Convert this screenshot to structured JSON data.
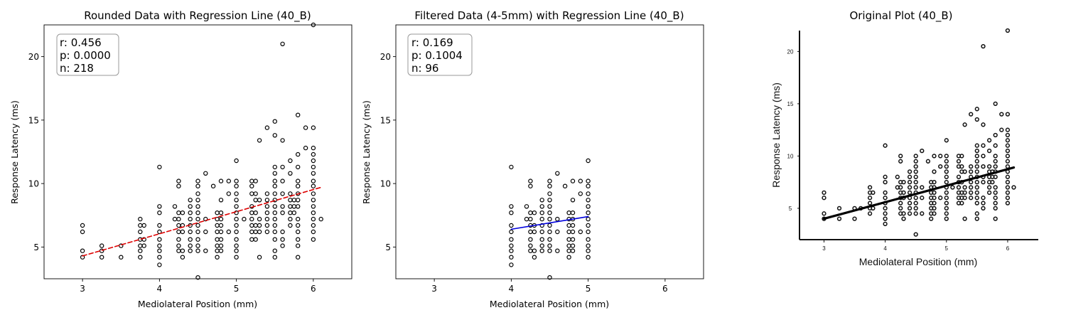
{
  "chart_data": [
    {
      "type": "scatter",
      "title": "Rounded Data with Regression Line (40_B)",
      "xlabel": "Mediolateral Position (mm)",
      "ylabel": "Response Latency (ms)",
      "xlim": [
        2.5,
        6.5
      ],
      "ylim": [
        2.5,
        22.5
      ],
      "xticks": [
        "3",
        "4",
        "5",
        "6"
      ],
      "yticks": [
        "5",
        "10",
        "15",
        "20"
      ],
      "stats": {
        "r": "r: 0.456",
        "p": "p: 0.0000",
        "n": "n: 218"
      },
      "regression": {
        "x": [
          3.0,
          6.1
        ],
        "y": [
          4.3,
          9.7
        ],
        "color": "#dd0000",
        "style": "dashed"
      },
      "marker_color": "#000000",
      "columns": [
        {
          "x": 3.0,
          "y": [
            4.2,
            4.7,
            6.2,
            6.7
          ]
        },
        {
          "x": 3.25,
          "y": [
            4.2,
            4.7,
            5.1
          ]
        },
        {
          "x": 3.5,
          "y": [
            4.2,
            5.1
          ]
        },
        {
          "x": 3.75,
          "y": [
            4.2,
            4.7,
            5.1,
            5.6,
            6.2,
            6.7,
            7.2
          ]
        },
        {
          "x": 3.8,
          "y": [
            5.1,
            5.6,
            6.7
          ]
        },
        {
          "x": 4.0,
          "y": [
            3.6,
            4.2,
            4.7,
            5.1,
            5.6,
            6.2,
            6.7,
            7.7,
            8.2,
            11.3
          ]
        },
        {
          "x": 4.2,
          "y": [
            7.2,
            8.2
          ]
        },
        {
          "x": 4.25,
          "y": [
            4.7,
            5.1,
            5.6,
            6.2,
            6.7,
            7.2,
            7.7,
            9.8,
            10.2
          ]
        },
        {
          "x": 4.3,
          "y": [
            4.2,
            4.7,
            6.2,
            6.7,
            7.7
          ]
        },
        {
          "x": 4.4,
          "y": [
            4.7,
            5.1,
            5.6,
            6.2,
            6.7,
            7.2,
            7.7,
            8.2,
            8.7
          ]
        },
        {
          "x": 4.5,
          "y": [
            2.6,
            4.7,
            5.1,
            5.6,
            6.2,
            6.7,
            7.2,
            7.7,
            8.2,
            8.7,
            9.2,
            9.8,
            10.2
          ]
        },
        {
          "x": 4.6,
          "y": [
            4.7,
            6.2,
            7.2,
            10.8
          ]
        },
        {
          "x": 4.7,
          "y": [
            9.8
          ]
        },
        {
          "x": 4.75,
          "y": [
            4.2,
            4.7,
            5.1,
            5.6,
            6.2,
            6.7,
            7.2,
            7.7
          ]
        },
        {
          "x": 4.8,
          "y": [
            4.7,
            5.1,
            5.6,
            6.2,
            6.7,
            7.2,
            7.7,
            8.7,
            10.2
          ]
        },
        {
          "x": 4.9,
          "y": [
            6.2,
            9.2,
            10.2
          ]
        },
        {
          "x": 5.0,
          "y": [
            4.2,
            4.7,
            5.1,
            5.6,
            6.2,
            6.7,
            7.2,
            7.7,
            8.2,
            8.7,
            9.2,
            9.8,
            10.2,
            11.8
          ]
        },
        {
          "x": 5.1,
          "y": [
            7.2
          ]
        },
        {
          "x": 5.2,
          "y": [
            5.6,
            6.2,
            6.7,
            7.2,
            7.7,
            8.2,
            9.2,
            9.8,
            10.2
          ]
        },
        {
          "x": 5.25,
          "y": [
            5.6,
            6.2,
            6.7,
            7.7,
            8.7,
            9.2,
            10.2
          ]
        },
        {
          "x": 5.3,
          "y": [
            4.2,
            6.2,
            6.7,
            7.2,
            8.7,
            13.4
          ]
        },
        {
          "x": 5.4,
          "y": [
            6.2,
            6.7,
            7.2,
            7.7,
            8.2,
            8.7,
            9.2,
            14.4
          ]
        },
        {
          "x": 5.5,
          "y": [
            4.2,
            4.7,
            5.6,
            6.2,
            6.7,
            7.2,
            7.7,
            8.2,
            8.7,
            9.2,
            9.8,
            10.2,
            10.8,
            11.3,
            13.8,
            14.9
          ]
        },
        {
          "x": 5.6,
          "y": [
            5.1,
            5.6,
            6.2,
            7.7,
            8.2,
            9.2,
            10.2,
            11.3,
            13.4,
            21.0
          ]
        },
        {
          "x": 5.7,
          "y": [
            6.7,
            7.2,
            7.7,
            8.2,
            8.7,
            9.2,
            10.8,
            11.8
          ]
        },
        {
          "x": 5.75,
          "y": [
            7.7,
            8.2,
            8.7
          ]
        },
        {
          "x": 5.8,
          "y": [
            4.2,
            5.1,
            5.6,
            6.2,
            6.7,
            7.2,
            8.2,
            8.7,
            9.2,
            9.8,
            10.2,
            11.3,
            12.3,
            15.4
          ]
        },
        {
          "x": 5.9,
          "y": [
            12.8,
            14.4
          ]
        },
        {
          "x": 6.0,
          "y": [
            5.6,
            6.2,
            6.7,
            7.2,
            7.7,
            8.2,
            8.7,
            9.2,
            9.8,
            10.2,
            10.8,
            11.3,
            11.8,
            12.3,
            12.8,
            14.4,
            22.5
          ]
        },
        {
          "x": 6.1,
          "y": [
            7.2
          ]
        }
      ]
    },
    {
      "type": "scatter",
      "title": "Filtered Data (4-5mm) with Regression Line (40_B)",
      "xlabel": "Mediolateral Position (mm)",
      "ylabel": "Response Latency (ms)",
      "xlim": [
        2.5,
        6.5
      ],
      "ylim": [
        2.5,
        22.5
      ],
      "xticks": [
        "3",
        "4",
        "5",
        "6"
      ],
      "yticks": [
        "5",
        "10",
        "15",
        "20"
      ],
      "stats": {
        "r": "r: 0.169",
        "p": "p: 0.1004",
        "n": "n: 96"
      },
      "regression": {
        "x": [
          4.0,
          5.0
        ],
        "y": [
          6.4,
          7.4
        ],
        "color": "#0000dd",
        "style": "solid"
      },
      "marker_color": "#000000",
      "columns": [
        {
          "x": 4.0,
          "y": [
            3.6,
            4.2,
            4.7,
            5.1,
            5.6,
            6.2,
            6.7,
            7.7,
            8.2,
            11.3
          ]
        },
        {
          "x": 4.2,
          "y": [
            7.2,
            8.2
          ]
        },
        {
          "x": 4.25,
          "y": [
            4.7,
            5.1,
            5.6,
            6.2,
            6.7,
            7.2,
            7.7,
            9.8,
            10.2
          ]
        },
        {
          "x": 4.3,
          "y": [
            4.2,
            4.7,
            6.2,
            6.7,
            7.7
          ]
        },
        {
          "x": 4.4,
          "y": [
            4.7,
            5.1,
            5.6,
            6.2,
            6.7,
            7.2,
            7.7,
            8.2,
            8.7
          ]
        },
        {
          "x": 4.5,
          "y": [
            2.6,
            4.7,
            5.1,
            5.6,
            6.2,
            6.7,
            7.2,
            7.7,
            8.2,
            8.7,
            9.2,
            9.8,
            10.2
          ]
        },
        {
          "x": 4.6,
          "y": [
            4.7,
            6.2,
            7.2,
            10.8
          ]
        },
        {
          "x": 4.7,
          "y": [
            9.8
          ]
        },
        {
          "x": 4.75,
          "y": [
            4.2,
            4.7,
            5.1,
            5.6,
            6.2,
            6.7,
            7.2,
            7.7
          ]
        },
        {
          "x": 4.8,
          "y": [
            4.7,
            5.1,
            5.6,
            6.2,
            6.7,
            7.2,
            7.7,
            8.7,
            10.2
          ]
        },
        {
          "x": 4.9,
          "y": [
            6.2,
            9.2,
            10.2
          ]
        },
        {
          "x": 5.0,
          "y": [
            4.2,
            4.7,
            5.1,
            5.6,
            6.2,
            6.7,
            7.2,
            7.7,
            8.2,
            8.7,
            9.2,
            9.8,
            10.2,
            11.8
          ]
        }
      ]
    },
    {
      "type": "scatter",
      "title": "Original Plot (40_B)",
      "xlabel": "Mediolateral Position (mm)",
      "ylabel": "Response Latency (ms)",
      "xlim": [
        2.6,
        6.5
      ],
      "ylim": [
        2.0,
        22.0
      ],
      "xticks": [
        "3",
        "4",
        "5",
        "6"
      ],
      "yticks": [
        "5",
        "10",
        "15",
        "20"
      ],
      "regression": {
        "x": [
          3.0,
          6.1
        ],
        "y": [
          4.0,
          8.9
        ],
        "color": "#000000",
        "style": "solid"
      },
      "marker_color": "#111111",
      "columns": [
        {
          "x": 3.0,
          "y": [
            4.0,
            4.5,
            6.0,
            6.5
          ]
        },
        {
          "x": 3.25,
          "y": [
            4.0,
            5.0
          ]
        },
        {
          "x": 3.5,
          "y": [
            4.0,
            5.0
          ]
        },
        {
          "x": 3.6,
          "y": [
            5.0
          ]
        },
        {
          "x": 3.75,
          "y": [
            4.5,
            5.0,
            5.5,
            6.0,
            6.5,
            7.0
          ]
        },
        {
          "x": 3.8,
          "y": [
            5.0,
            6.5
          ]
        },
        {
          "x": 4.0,
          "y": [
            3.5,
            4.0,
            4.5,
            5.0,
            5.5,
            6.0,
            6.5,
            7.5,
            8.0,
            11.0
          ]
        },
        {
          "x": 4.2,
          "y": [
            7.0,
            8.0
          ]
        },
        {
          "x": 4.25,
          "y": [
            4.5,
            5.0,
            5.5,
            6.0,
            6.5,
            7.0,
            7.5,
            9.5,
            10.0
          ]
        },
        {
          "x": 4.3,
          "y": [
            4.0,
            4.5,
            6.0,
            6.5,
            7.5
          ]
        },
        {
          "x": 4.4,
          "y": [
            4.5,
            5.0,
            5.5,
            6.0,
            6.5,
            7.0,
            7.5,
            8.0,
            8.5
          ]
        },
        {
          "x": 4.5,
          "y": [
            2.5,
            4.5,
            5.0,
            5.5,
            6.0,
            6.5,
            7.0,
            7.5,
            8.0,
            8.5,
            9.0,
            9.5,
            10.0
          ]
        },
        {
          "x": 4.6,
          "y": [
            4.5,
            6.0,
            7.0,
            10.5
          ]
        },
        {
          "x": 4.7,
          "y": [
            9.5
          ]
        },
        {
          "x": 4.75,
          "y": [
            4.0,
            4.5,
            5.0,
            5.5,
            6.0,
            6.5,
            7.0,
            7.5
          ]
        },
        {
          "x": 4.8,
          "y": [
            4.5,
            5.0,
            5.5,
            6.0,
            6.5,
            7.0,
            7.5,
            8.5,
            10.0
          ]
        },
        {
          "x": 4.9,
          "y": [
            6.0,
            9.0,
            10.0
          ]
        },
        {
          "x": 5.0,
          "y": [
            4.0,
            4.5,
            5.0,
            5.5,
            6.0,
            6.5,
            7.0,
            7.5,
            8.0,
            8.5,
            9.0,
            9.5,
            10.0,
            11.5
          ]
        },
        {
          "x": 5.1,
          "y": [
            7.0
          ]
        },
        {
          "x": 5.2,
          "y": [
            5.5,
            6.0,
            6.5,
            7.0,
            7.5,
            8.0,
            9.0,
            9.5,
            10.0
          ]
        },
        {
          "x": 5.25,
          "y": [
            5.5,
            6.0,
            6.5,
            7.5,
            8.5,
            9.0,
            10.0
          ]
        },
        {
          "x": 5.3,
          "y": [
            4.0,
            6.0,
            6.5,
            7.0,
            8.5,
            13.0
          ]
        },
        {
          "x": 5.4,
          "y": [
            6.0,
            6.5,
            7.0,
            7.5,
            8.0,
            8.5,
            9.0,
            14.0
          ]
        },
        {
          "x": 5.5,
          "y": [
            4.0,
            4.5,
            5.5,
            6.0,
            6.5,
            7.0,
            7.5,
            8.0,
            8.5,
            9.0,
            9.5,
            10.0,
            10.5,
            11.0,
            13.5,
            14.5
          ]
        },
        {
          "x": 5.6,
          "y": [
            5.0,
            5.5,
            6.0,
            7.5,
            8.0,
            9.0,
            10.0,
            11.0,
            13.0,
            20.5
          ]
        },
        {
          "x": 5.7,
          "y": [
            6.5,
            7.0,
            7.5,
            8.0,
            8.5,
            9.0,
            10.5,
            11.5
          ]
        },
        {
          "x": 5.75,
          "y": [
            7.5,
            8.0,
            8.5
          ]
        },
        {
          "x": 5.8,
          "y": [
            4.0,
            5.0,
            5.5,
            6.0,
            6.5,
            7.0,
            8.0,
            8.5,
            9.0,
            9.5,
            10.0,
            11.0,
            12.0,
            15.0
          ]
        },
        {
          "x": 5.9,
          "y": [
            12.5,
            14.0
          ]
        },
        {
          "x": 6.0,
          "y": [
            5.5,
            6.0,
            6.5,
            7.0,
            7.5,
            8.0,
            8.5,
            9.0,
            9.5,
            10.0,
            10.5,
            11.0,
            11.5,
            12.0,
            12.5,
            14.0,
            22.0
          ]
        },
        {
          "x": 6.1,
          "y": [
            7.0
          ]
        }
      ]
    }
  ]
}
